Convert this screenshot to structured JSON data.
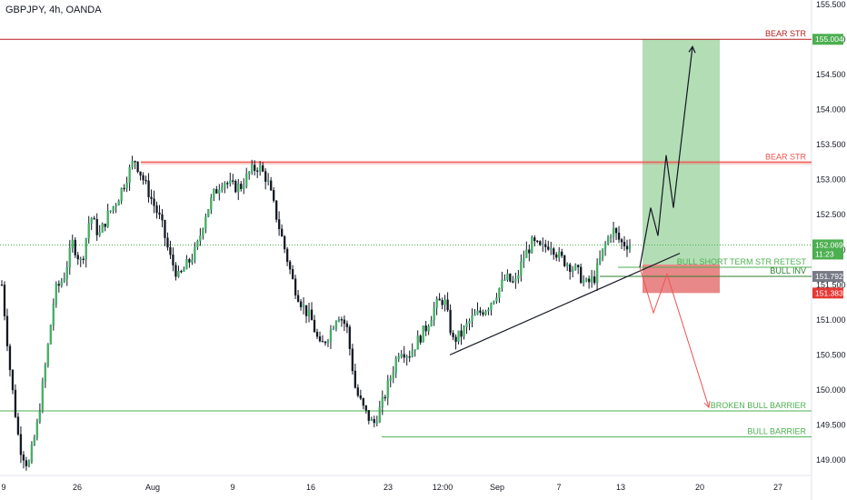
{
  "header": {
    "title": "GBPJPY, 4h, OANDA"
  },
  "chart_data": {
    "type": "candlestick",
    "symbol": "GBPJPY",
    "interval": "4h",
    "source": "OANDA",
    "ylim": [
      148.75,
      155.5
    ],
    "x_ticks": [
      "9",
      "26",
      "Aug",
      "9",
      "16",
      "23",
      "12:00",
      "Sep",
      "7",
      "13",
      "20",
      "27"
    ],
    "y_ticks": [
      "155.500",
      "155.000",
      "154.500",
      "154.000",
      "153.500",
      "153.000",
      "152.500",
      "152.000",
      "151.500",
      "151.000",
      "150.500",
      "150.000",
      "149.500",
      "149.000"
    ],
    "price_path": [
      {
        "t": 0,
        "p": 151.5
      },
      {
        "t": 1,
        "p": 150.2
      },
      {
        "t": 2,
        "p": 149.2
      },
      {
        "t": 3,
        "p": 148.9
      },
      {
        "t": 4,
        "p": 149.5
      },
      {
        "t": 5,
        "p": 150.4
      },
      {
        "t": 6,
        "p": 151.4
      },
      {
        "t": 7,
        "p": 151.6
      },
      {
        "t": 8,
        "p": 152.1
      },
      {
        "t": 9,
        "p": 151.8
      },
      {
        "t": 10,
        "p": 152.5
      },
      {
        "t": 11,
        "p": 152.2
      },
      {
        "t": 12,
        "p": 152.5
      },
      {
        "t": 13,
        "p": 152.7
      },
      {
        "t": 14,
        "p": 153.0
      },
      {
        "t": 15,
        "p": 153.3
      },
      {
        "t": 16,
        "p": 153.0
      },
      {
        "t": 17,
        "p": 152.7
      },
      {
        "t": 18,
        "p": 152.4
      },
      {
        "t": 19,
        "p": 151.9
      },
      {
        "t": 20,
        "p": 151.6
      },
      {
        "t": 21,
        "p": 151.8
      },
      {
        "t": 22,
        "p": 152.0
      },
      {
        "t": 23,
        "p": 152.5
      },
      {
        "t": 24,
        "p": 152.8
      },
      {
        "t": 25,
        "p": 153.0
      },
      {
        "t": 26,
        "p": 152.9
      },
      {
        "t": 27,
        "p": 152.9
      },
      {
        "t": 28,
        "p": 153.1
      },
      {
        "t": 29,
        "p": 153.2
      },
      {
        "t": 30,
        "p": 153.0
      },
      {
        "t": 31,
        "p": 152.5
      },
      {
        "t": 32,
        "p": 152.0
      },
      {
        "t": 33,
        "p": 151.5
      },
      {
        "t": 34,
        "p": 151.2
      },
      {
        "t": 35,
        "p": 151.0
      },
      {
        "t": 36,
        "p": 150.6
      },
      {
        "t": 37,
        "p": 150.8
      },
      {
        "t": 38,
        "p": 151.1
      },
      {
        "t": 39,
        "p": 150.9
      },
      {
        "t": 40,
        "p": 150.0
      },
      {
        "t": 41,
        "p": 149.7
      },
      {
        "t": 42,
        "p": 149.5
      },
      {
        "t": 43,
        "p": 149.8
      },
      {
        "t": 44,
        "p": 150.2
      },
      {
        "t": 45,
        "p": 150.6
      },
      {
        "t": 46,
        "p": 150.5
      },
      {
        "t": 47,
        "p": 150.7
      },
      {
        "t": 48,
        "p": 150.9
      },
      {
        "t": 49,
        "p": 151.2
      },
      {
        "t": 50,
        "p": 151.3
      },
      {
        "t": 51,
        "p": 150.7
      },
      {
        "t": 52,
        "p": 150.8
      },
      {
        "t": 53,
        "p": 151.0
      },
      {
        "t": 54,
        "p": 151.1
      },
      {
        "t": 55,
        "p": 151.2
      },
      {
        "t": 56,
        "p": 151.4
      },
      {
        "t": 57,
        "p": 151.6
      },
      {
        "t": 58,
        "p": 151.5
      },
      {
        "t": 59,
        "p": 151.9
      },
      {
        "t": 60,
        "p": 152.1
      },
      {
        "t": 61,
        "p": 152.0
      },
      {
        "t": 62,
        "p": 152.1
      },
      {
        "t": 63,
        "p": 151.9
      },
      {
        "t": 64,
        "p": 151.8
      },
      {
        "t": 65,
        "p": 151.7
      },
      {
        "t": 66,
        "p": 151.5
      },
      {
        "t": 67,
        "p": 151.6
      },
      {
        "t": 68,
        "p": 152.0
      },
      {
        "t": 69,
        "p": 152.3
      },
      {
        "t": 70,
        "p": 152.1
      },
      {
        "t": 71,
        "p": 152.07
      }
    ],
    "current_price": {
      "value": "152.069",
      "countdown": "11:23"
    },
    "levels": [
      {
        "label": "BEAR STR",
        "value": 155.004,
        "badge": "155.004",
        "color": "#b71c1c"
      },
      {
        "label": "BEAR STR",
        "value": 153.25,
        "color": "#ef5350"
      },
      {
        "label": "BULL SHORT TERM STR RETEST",
        "value": 151.75,
        "color": "#4caf50"
      },
      {
        "label": "BULL INV",
        "value": 151.62,
        "badge": "151.792",
        "color": "#2e7d32"
      },
      {
        "label": "BROKEN BULL  BARRIER",
        "value": 149.7,
        "color": "#4caf50"
      },
      {
        "label": "BULL BARRIER",
        "value": 149.33,
        "color": "#4caf50"
      }
    ],
    "stop_badge": "151.383",
    "trade_zone": {
      "target": 155.004,
      "entry": 151.79,
      "stop": 151.383
    },
    "trendline": {
      "from": 150.5,
      "to": 151.95
    },
    "bull_projection": [
      151.75,
      152.6,
      152.2,
      153.35,
      152.6,
      154.9
    ],
    "bear_projection": [
      151.75,
      151.1,
      151.65,
      149.75
    ]
  }
}
